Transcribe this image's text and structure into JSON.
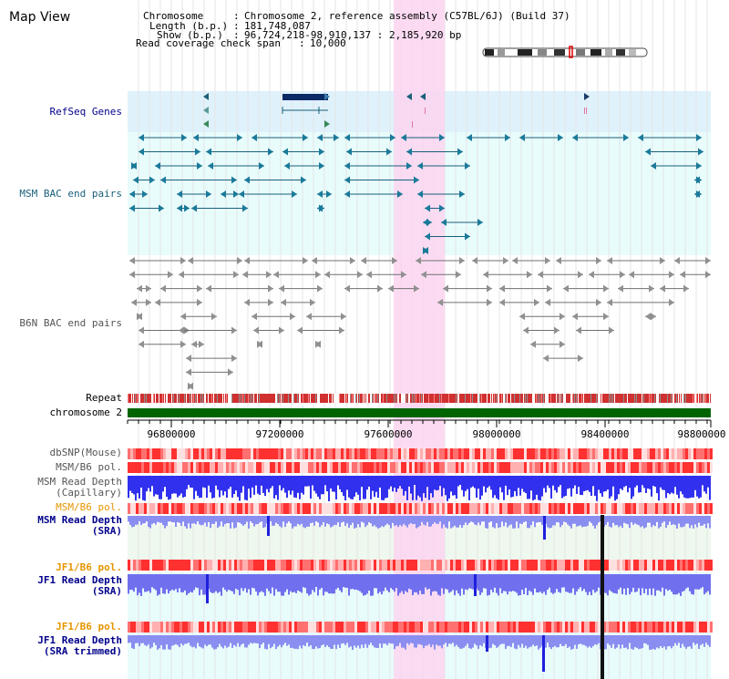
{
  "title": "Map View",
  "info": {
    "chromosome_label": "Chromosome",
    "chromosome_value": "Chromosome 2, reference assembly (C57BL/6J) (Build 37)",
    "length_label": "Length (b.p.)",
    "length_value": "181,748,087",
    "show_label": "Show (b.p.)",
    "show_value": "96,724,218-98,910,137 : 2,185,920 bp",
    "coverage_label": "Read coverage check span",
    "coverage_value": "10,000"
  },
  "tracks": {
    "refseq": "RefSeq Genes",
    "msm_bac": "MSM BAC end pairs",
    "b6n_bac": "B6N BAC end pairs",
    "repeat": "Repeat",
    "chromosome": "chromosome 2",
    "dbsnp": "dbSNP(Mouse)",
    "msm_b6_pol_1": "MSM/B6 pol.",
    "msm_depth_cap_1": "MSM Read Depth",
    "msm_depth_cap_2": "(Capillary)",
    "msm_b6_pol_2": "MSM/B6 pol.",
    "msm_depth_sra_1": "MSM Read Depth",
    "msm_depth_sra_2": "(SRA)",
    "jf1_b6_pol_1": "JF1/B6 pol.",
    "jf1_depth_sra_1": "JF1 Read Depth",
    "jf1_depth_sra_2": "(SRA)",
    "jf1_b6_pol_2": "JF1/B6 pol.",
    "jf1_depth_trim_1": "JF1 Read Depth",
    "jf1_depth_trim_2": "(SRA trimmed)"
  },
  "ruler": {
    "ticks": [
      "96800000",
      "97200000",
      "97600000",
      "98000000",
      "98400000",
      "98800000"
    ]
  },
  "colors": {
    "label_blue": "#00008b",
    "label_teal": "#1a5f7a",
    "label_gray": "#555555",
    "label_orange": "#e69500",
    "refseq_bg": "#dff2fb",
    "pale_cyan": "#e8fcfc",
    "highlight": "#fbd5f0",
    "chromosome_bar": "#006400",
    "depth_blue": "#3030ee",
    "depth_light": "#8a8ef0"
  }
}
